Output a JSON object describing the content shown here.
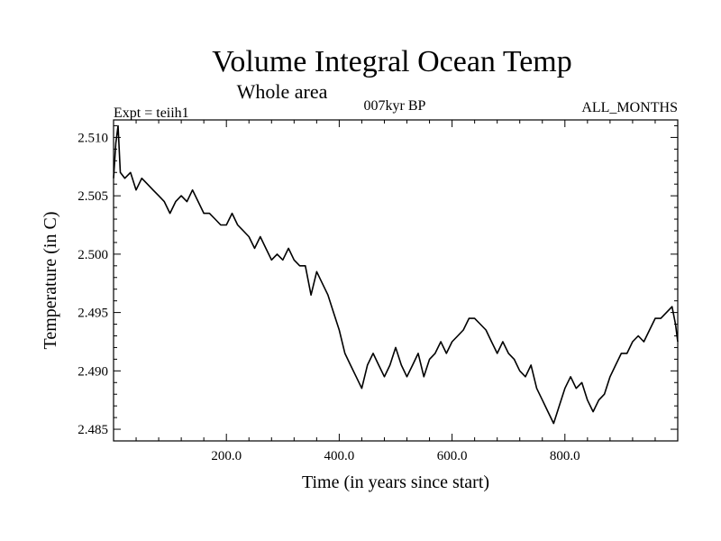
{
  "chart_data": {
    "type": "line",
    "title": "Volume Integral Ocean Temp",
    "subtitle": "Whole area",
    "left_label": "Expt = teiih1",
    "center_label": "007kyr BP",
    "right_label": "ALL_MONTHS",
    "xlabel": "Time (in years since start)",
    "ylabel": "Temperature (in C)",
    "xlim": [
      0,
      1000
    ],
    "ylim": [
      2.484,
      2.5115
    ],
    "x_ticks": [
      200,
      400,
      600,
      800
    ],
    "x_tick_labels": [
      "200.0",
      "400.0",
      "600.0",
      "800.0"
    ],
    "y_ticks": [
      2.485,
      2.49,
      2.495,
      2.5,
      2.505,
      2.51
    ],
    "y_tick_labels": [
      "2.485",
      "2.490",
      "2.495",
      "2.500",
      "2.505",
      "2.510"
    ],
    "grid": false,
    "series": [
      {
        "x": [
          0,
          4,
          8,
          12,
          20,
          30,
          40,
          50,
          60,
          70,
          80,
          90,
          100,
          110,
          120,
          130,
          140,
          150,
          160,
          170,
          180,
          190,
          200,
          210,
          220,
          230,
          240,
          250,
          260,
          270,
          280,
          290,
          300,
          310,
          320,
          330,
          340,
          350,
          360,
          370,
          380,
          390,
          400,
          410,
          420,
          430,
          440,
          450,
          460,
          470,
          480,
          490,
          500,
          510,
          520,
          530,
          540,
          550,
          560,
          570,
          580,
          590,
          600,
          610,
          620,
          630,
          640,
          650,
          660,
          670,
          680,
          690,
          700,
          710,
          720,
          730,
          740,
          750,
          760,
          770,
          780,
          790,
          800,
          810,
          820,
          830,
          840,
          850,
          860,
          870,
          880,
          890,
          900,
          910,
          920,
          930,
          940,
          950,
          960,
          970,
          980,
          990,
          996,
          1000
        ],
        "y": [
          2.5065,
          2.5095,
          2.511,
          2.507,
          2.5065,
          2.507,
          2.5055,
          2.5065,
          2.506,
          2.5055,
          2.505,
          2.5045,
          2.5035,
          2.5045,
          2.505,
          2.5045,
          2.5055,
          2.5045,
          2.5035,
          2.5035,
          2.503,
          2.5025,
          2.5025,
          2.5035,
          2.5025,
          2.502,
          2.5015,
          2.5005,
          2.5015,
          2.5005,
          2.4995,
          2.5,
          2.4995,
          2.5005,
          2.4995,
          2.499,
          2.499,
          2.4965,
          2.4985,
          2.4975,
          2.4965,
          2.495,
          2.4935,
          2.4915,
          2.4905,
          2.4895,
          2.4885,
          2.4905,
          2.4915,
          2.4905,
          2.4895,
          2.4905,
          2.492,
          2.4905,
          2.4895,
          2.4905,
          2.4915,
          2.4895,
          2.491,
          2.4915,
          2.4925,
          2.4915,
          2.4925,
          2.493,
          2.4935,
          2.4945,
          2.4945,
          2.494,
          2.4935,
          2.4925,
          2.4915,
          2.4925,
          2.4915,
          2.491,
          2.49,
          2.4895,
          2.4905,
          2.4885,
          2.4875,
          2.4865,
          2.4855,
          2.487,
          2.4885,
          2.4895,
          2.4885,
          2.489,
          2.4875,
          2.4865,
          2.4875,
          2.488,
          2.4895,
          2.4905,
          2.4915,
          2.4915,
          2.4925,
          2.493,
          2.4925,
          2.4935,
          2.4945,
          2.4945,
          2.495,
          2.4955,
          2.494,
          2.4925
        ]
      }
    ]
  }
}
